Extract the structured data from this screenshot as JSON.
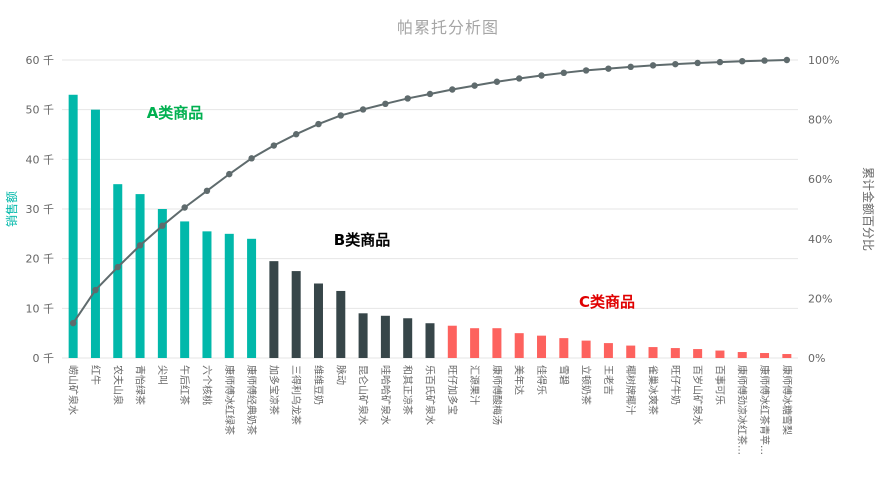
{
  "chart_data": {
    "type": "bar",
    "subtype": "pareto (bars + cumulative line)",
    "title": "帕累托分析图",
    "ylabel_left": "销售额",
    "ylabel_right": "累计金额百分比",
    "y_left_ticks": [
      "0 千",
      "10 千",
      "20 千",
      "30 千",
      "40 千",
      "50 千",
      "60 千"
    ],
    "y_left_max": 60,
    "y_right_ticks": [
      "0%",
      "20%",
      "40%",
      "60%",
      "80%",
      "100%"
    ],
    "y_right_max": 100,
    "grid": "horizontal",
    "legend_position": "none",
    "categories": [
      "崂山矿泉水",
      "红牛",
      "农夫山泉",
      "青怡绿茶",
      "尖叫",
      "午后红茶",
      "六个核桃",
      "康师傅冰红绿茶",
      "康师傅经典奶茶",
      "加多宝凉茶",
      "三得利乌龙茶",
      "维维豆奶",
      "脉动",
      "昆仑山矿泉水",
      "哇哈哈矿泉水",
      "和其正凉茶",
      "乐百氏矿泉水",
      "旺仔加多宝",
      "汇源果汁",
      "康师傅酸梅汤",
      "美年达",
      "佳得乐",
      "雪碧",
      "立顿奶茶",
      "王老吉",
      "椰树牌椰汁",
      "雀巢冰爽茶",
      "旺仔牛奶",
      "百岁山矿泉水",
      "百事可乐",
      "康师傅劲凉冰红茶…",
      "康师傅冰红茶青苹…",
      "康师傅冰糖雪梨"
    ],
    "bar_values_thousands": [
      53,
      50,
      35,
      33,
      30,
      27.5,
      25.5,
      25,
      24,
      19.5,
      17.5,
      15,
      13.5,
      9,
      8.5,
      8,
      7,
      6.5,
      6,
      6,
      5,
      4.5,
      4,
      3.5,
      3,
      2.5,
      2.2,
      2,
      1.8,
      1.5,
      1.2,
      1,
      0.8
    ],
    "cumulative_percent": [
      11.7,
      22.8,
      30.5,
      37.8,
      44.4,
      50.5,
      56.1,
      61.7,
      67.0,
      71.3,
      75.1,
      78.5,
      81.4,
      83.4,
      85.3,
      87.1,
      88.6,
      90.1,
      91.4,
      92.7,
      93.8,
      94.8,
      95.7,
      96.5,
      97.1,
      97.7,
      98.2,
      98.6,
      99.0,
      99.3,
      99.6,
      99.8,
      100.0
    ],
    "group": [
      "A",
      "A",
      "A",
      "A",
      "A",
      "A",
      "A",
      "A",
      "A",
      "B",
      "B",
      "B",
      "B",
      "B",
      "B",
      "B",
      "B",
      "C",
      "C",
      "C",
      "C",
      "C",
      "C",
      "C",
      "C",
      "C",
      "C",
      "C",
      "C",
      "C",
      "C",
      "C",
      "C"
    ],
    "colors": {
      "A": "#01B8AA",
      "B": "#374649",
      "C": "#FD625E",
      "line": "#5F6B6D",
      "grid": "#E6E6E6",
      "title": "#A6A6A6",
      "axis_text": "#666666",
      "left_axis_title": "#01B8AA",
      "right_axis_title": "#666666"
    },
    "annotations": [
      {
        "id": "A",
        "label": "A类商品",
        "color": "#00B050"
      },
      {
        "id": "B",
        "label": "B类商品",
        "color": "#000000"
      },
      {
        "id": "C",
        "label": "C类商品",
        "color": "#E00000"
      }
    ]
  }
}
